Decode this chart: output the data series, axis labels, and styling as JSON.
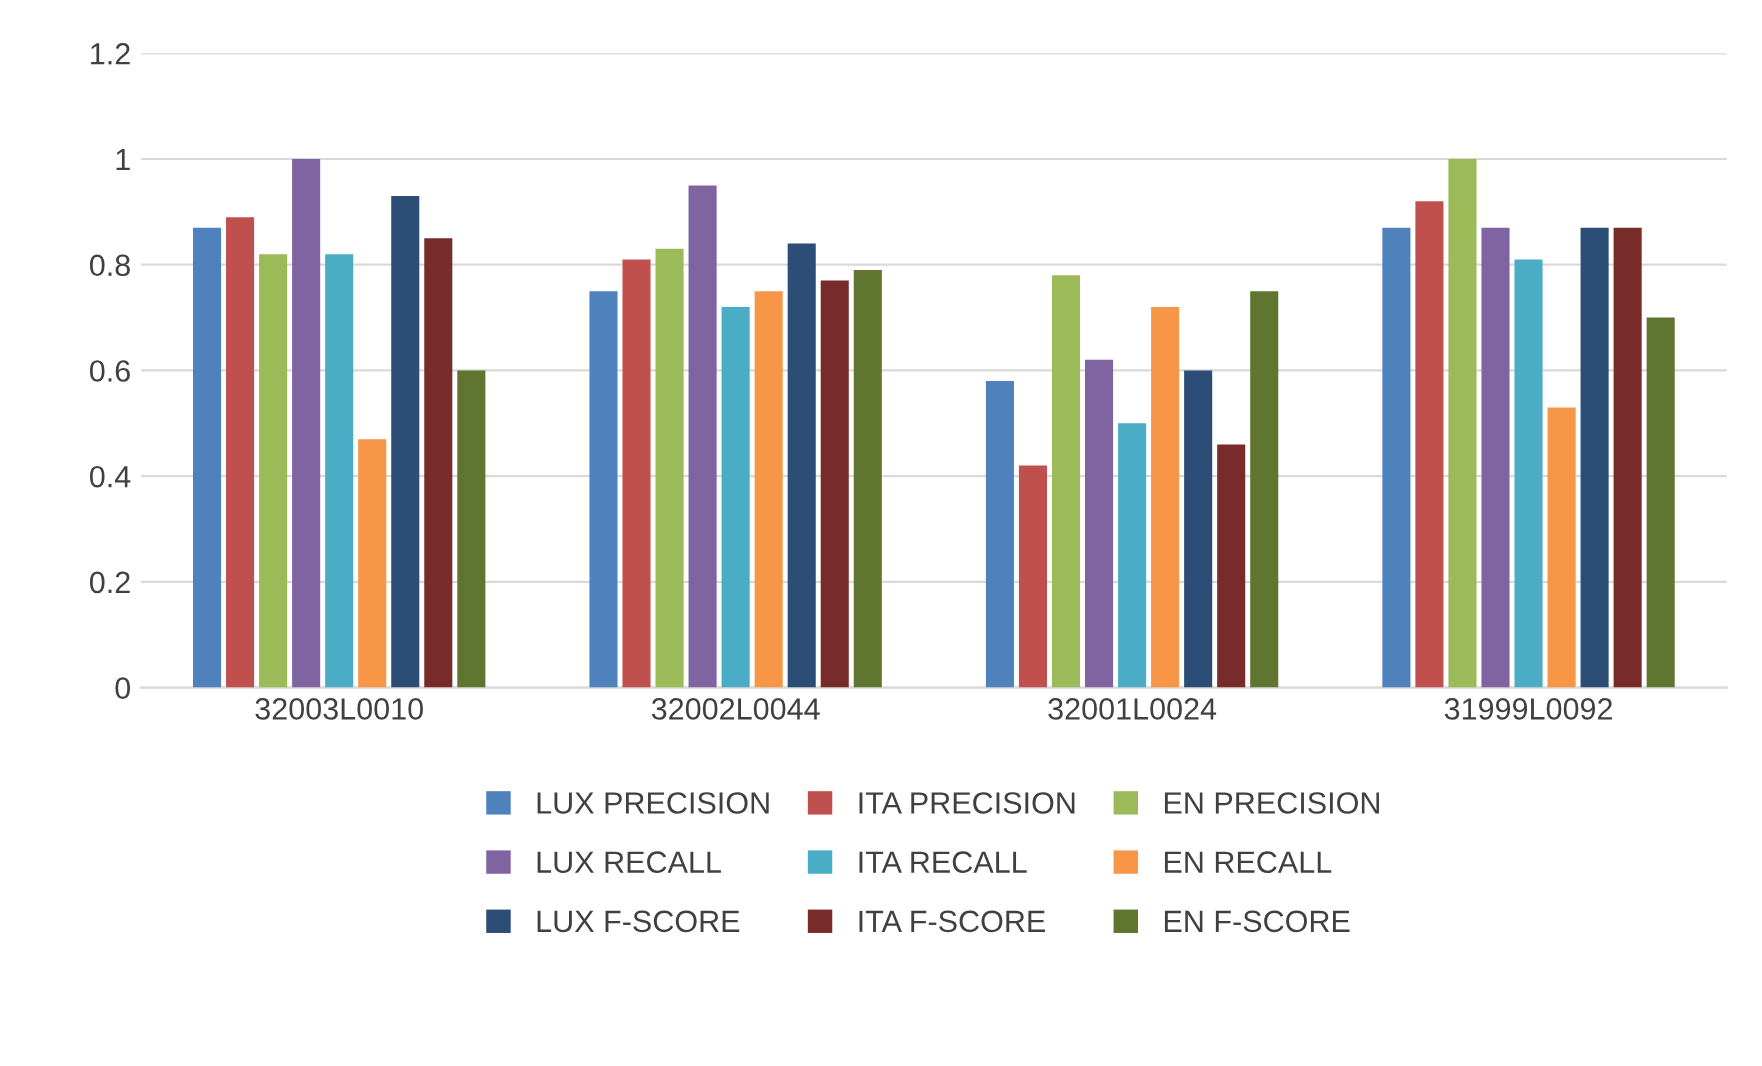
{
  "chart_data": {
    "type": "bar",
    "categories": [
      "32003L0010",
      "32002L0044",
      "32001L0024",
      "31999L0092"
    ],
    "series": [
      {
        "name": "LUX PRECISION",
        "color": "#4f81bd",
        "values": [
          0.87,
          0.75,
          0.58,
          0.87
        ]
      },
      {
        "name": "ITA PRECISION",
        "color": "#c0504d",
        "values": [
          0.89,
          0.81,
          0.42,
          0.92
        ]
      },
      {
        "name": "EN PRECISION",
        "color": "#9bbb59",
        "values": [
          0.82,
          0.83,
          0.78,
          1.0
        ]
      },
      {
        "name": "LUX RECALL",
        "color": "#8064a2",
        "values": [
          1.0,
          0.95,
          0.62,
          0.87
        ]
      },
      {
        "name": "ITA RECALL",
        "color": "#4bacc6",
        "values": [
          0.82,
          0.72,
          0.5,
          0.81
        ]
      },
      {
        "name": "EN RECALL",
        "color": "#f79646",
        "values": [
          0.47,
          0.75,
          0.72,
          0.53
        ]
      },
      {
        "name": "LUX F-SCORE",
        "color": "#2c4d75",
        "values": [
          0.93,
          0.84,
          0.6,
          0.87
        ]
      },
      {
        "name": "ITA F-SCORE",
        "color": "#772c2a",
        "values": [
          0.85,
          0.77,
          0.46,
          0.87
        ]
      },
      {
        "name": "EN F-SCORE",
        "color": "#5f7530",
        "values": [
          0.6,
          0.79,
          0.75,
          0.7
        ]
      }
    ],
    "ylim": [
      0,
      1.2
    ],
    "yticks": [
      0,
      0.2,
      0.4,
      0.6,
      0.8,
      1,
      1.2
    ],
    "grid": "y",
    "legend": "bottom"
  }
}
